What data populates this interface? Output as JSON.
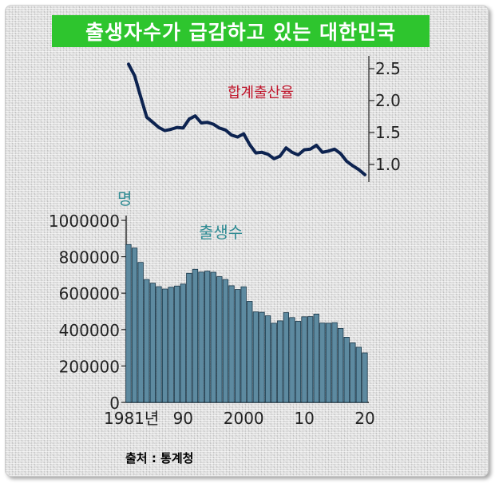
{
  "title": "출생자수가 급감하고 있는 대한민국",
  "source": "출처 : 통계청",
  "colors": {
    "title_bg": "#2ec52e",
    "tfr_line": "#0d2350",
    "tfr_label": "#c0152b",
    "birth_label": "#2f8c94",
    "bar_fill": "#5d8aa0",
    "bar_stroke": "#163446"
  },
  "chart_data": [
    {
      "type": "line",
      "series": [
        {
          "name": "합계출산율",
          "x": [
            1981,
            1982,
            1983,
            1984,
            1985,
            1986,
            1987,
            1988,
            1989,
            1990,
            1991,
            1992,
            1993,
            1994,
            1995,
            1996,
            1997,
            1998,
            1999,
            2000,
            2001,
            2002,
            2003,
            2004,
            2005,
            2006,
            2007,
            2008,
            2009,
            2010,
            2011,
            2012,
            2013,
            2014,
            2015,
            2016,
            2017,
            2018,
            2019,
            2020
          ],
          "values": [
            2.57,
            2.39,
            2.06,
            1.74,
            1.66,
            1.58,
            1.53,
            1.55,
            1.58,
            1.57,
            1.71,
            1.76,
            1.65,
            1.66,
            1.63,
            1.57,
            1.54,
            1.46,
            1.43,
            1.48,
            1.31,
            1.18,
            1.19,
            1.16,
            1.09,
            1.13,
            1.26,
            1.19,
            1.15,
            1.23,
            1.24,
            1.3,
            1.19,
            1.21,
            1.24,
            1.17,
            1.05,
            0.98,
            0.92,
            0.84
          ]
        }
      ],
      "ylim": [
        0.8,
        2.7
      ],
      "y_ticks": [
        "2.5",
        "2.0",
        "1.5",
        "1.0"
      ],
      "y_tick_values": [
        2.5,
        2.0,
        1.5,
        1.0
      ]
    },
    {
      "type": "bar",
      "series": [
        {
          "name": "출생수",
          "x": [
            1981,
            1982,
            1983,
            1984,
            1985,
            1986,
            1987,
            1988,
            1989,
            1990,
            1991,
            1992,
            1993,
            1994,
            1995,
            1996,
            1997,
            1998,
            1999,
            2000,
            2001,
            2002,
            2003,
            2004,
            2005,
            2006,
            2007,
            2008,
            2009,
            2010,
            2011,
            2012,
            2013,
            2014,
            2015,
            2016,
            2017,
            2018,
            2019,
            2020
          ],
          "values": [
            867000,
            848000,
            769000,
            675000,
            655000,
            636000,
            623000,
            633000,
            639000,
            650000,
            709000,
            731000,
            716000,
            721000,
            715000,
            691000,
            675000,
            641000,
            620000,
            635000,
            555000,
            497000,
            495000,
            476000,
            435000,
            448000,
            493000,
            466000,
            445000,
            470000,
            471000,
            485000,
            436000,
            435000,
            438000,
            406000,
            358000,
            327000,
            303000,
            272000
          ]
        }
      ],
      "ylabel": "명",
      "ylim": [
        0,
        1000000
      ],
      "y_ticks": [
        "0",
        "200000",
        "400000",
        "600000",
        "800000",
        "1000000"
      ],
      "y_tick_values": [
        0,
        200000,
        400000,
        600000,
        800000,
        1000000
      ],
      "x_ticks": [
        "1981년",
        "90",
        "2000",
        "10",
        "20"
      ],
      "x_tick_values": [
        1981,
        1990,
        2000,
        2010,
        2020
      ]
    }
  ]
}
